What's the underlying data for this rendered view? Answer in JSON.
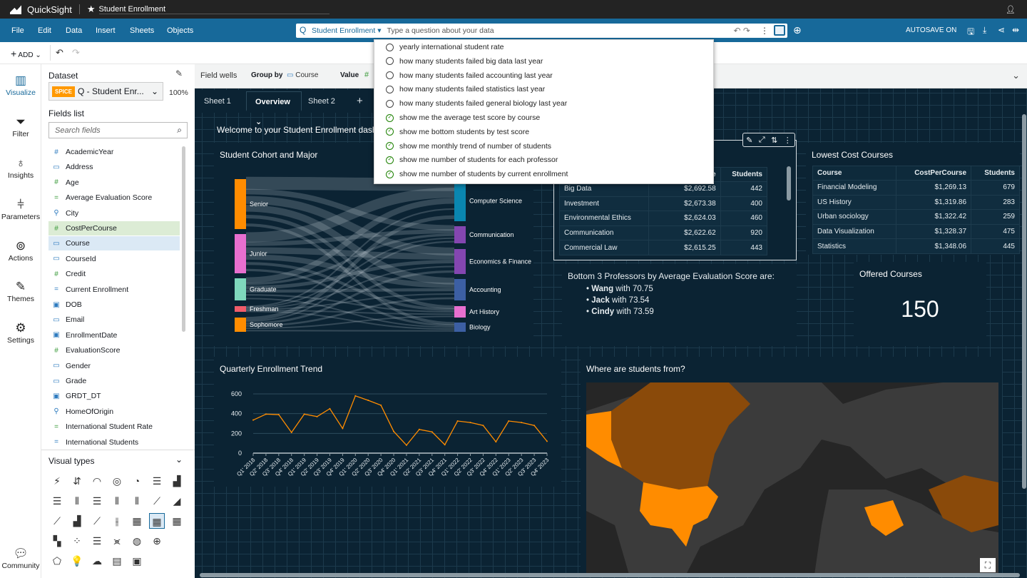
{
  "app": {
    "name": "QuickSight",
    "analysis_title": "Student Enrollment"
  },
  "menu": [
    "File",
    "Edit",
    "Data",
    "Insert",
    "Sheets",
    "Objects"
  ],
  "qbar": {
    "topic": "Student Enrollment",
    "placeholder": "Type a question about your data"
  },
  "autosave": "AUTOSAVE ON",
  "toolbar": {
    "add_label": "ADD"
  },
  "rail": [
    {
      "label": "Visualize",
      "icon": "bar-chart-icon"
    },
    {
      "label": "Filter",
      "icon": "funnel-icon"
    },
    {
      "label": "Insights",
      "icon": "lightbulb-icon"
    },
    {
      "label": "Parameters",
      "icon": "sliders-icon"
    },
    {
      "label": "Actions",
      "icon": "cursor-click-icon"
    },
    {
      "label": "Themes",
      "icon": "brush-icon"
    },
    {
      "label": "Settings",
      "icon": "gear-icon"
    }
  ],
  "community": "Community",
  "dataset": {
    "label": "Dataset",
    "badge": "SPICE",
    "name": "Q - Student Enr...",
    "percent": "100%",
    "fields_label": "Fields list",
    "search_placeholder": "Search fields"
  },
  "fields": [
    {
      "name": "AcademicYear",
      "type": "#",
      "color": "#2e7bbf"
    },
    {
      "name": "Address",
      "type": "dim",
      "color": "#2e7bbf"
    },
    {
      "name": "Age",
      "type": "#",
      "color": "#3a9a3a"
    },
    {
      "name": "Average Evaluation Score",
      "type": "=",
      "color": "#3a9a3a"
    },
    {
      "name": "City",
      "type": "geo",
      "color": "#2e7bbf"
    },
    {
      "name": "CostPerCourse",
      "type": "#",
      "color": "#3a9a3a",
      "selected": "measure"
    },
    {
      "name": "Course",
      "type": "dim",
      "color": "#2e7bbf",
      "selected": "dimension"
    },
    {
      "name": "CourseId",
      "type": "dim",
      "color": "#2e7bbf"
    },
    {
      "name": "Credit",
      "type": "#",
      "color": "#3a9a3a"
    },
    {
      "name": "Current Enrollment",
      "type": "=",
      "color": "#2e7bbf"
    },
    {
      "name": "DOB",
      "type": "date",
      "color": "#2e7bbf"
    },
    {
      "name": "Email",
      "type": "dim",
      "color": "#2e7bbf"
    },
    {
      "name": "EnrollmentDate",
      "type": "date",
      "color": "#2e7bbf"
    },
    {
      "name": "EvaluationScore",
      "type": "#",
      "color": "#3a9a3a"
    },
    {
      "name": "Gender",
      "type": "dim",
      "color": "#2e7bbf"
    },
    {
      "name": "Grade",
      "type": "dim",
      "color": "#2e7bbf"
    },
    {
      "name": "GRDT_DT",
      "type": "date",
      "color": "#2e7bbf"
    },
    {
      "name": "HomeOfOrigin",
      "type": "geo",
      "color": "#2e7bbf"
    },
    {
      "name": "International Student Rate",
      "type": "=",
      "color": "#3a9a3a"
    },
    {
      "name": "International Students",
      "type": "=",
      "color": "#2e7bbf"
    }
  ],
  "visual_types_label": "Visual types",
  "field_wells": {
    "label": "Field wells",
    "group_by_label": "Group by",
    "group_by_value": "Course",
    "value_label": "Value"
  },
  "sheets": [
    "Sheet 1",
    "Overview",
    "Sheet 2"
  ],
  "active_sheet": "Overview",
  "suggestions": [
    {
      "text": "yearly international student rate",
      "kind": "recent"
    },
    {
      "text": "how many students failed big data last year",
      "kind": "recent"
    },
    {
      "text": "how many students failed accounting last year",
      "kind": "recent"
    },
    {
      "text": "how many students failed statistics last year",
      "kind": "recent"
    },
    {
      "text": "how many students failed general biology last year",
      "kind": "recent"
    },
    {
      "text": "show me the average test score by course",
      "kind": "verified"
    },
    {
      "text": "show me bottom students by test score",
      "kind": "verified"
    },
    {
      "text": "show me monthly trend of number of students",
      "kind": "verified"
    },
    {
      "text": "show me number of students for each professor",
      "kind": "verified"
    },
    {
      "text": "show me number of students by current enrollment",
      "kind": "verified"
    }
  ],
  "welcome": "Welcome to your Student Enrollment dash",
  "sankey": {
    "title": "Student Cohort and Major",
    "sources": [
      {
        "name": "Senior",
        "color": "#ff8c00"
      },
      {
        "name": "Junior",
        "color": "#e86fcf"
      },
      {
        "name": "Graduate",
        "color": "#7fd8bd"
      },
      {
        "name": "Freshman",
        "color": "#f15c6a"
      },
      {
        "name": "Sophomore",
        "color": "#ff8c00"
      }
    ],
    "targets": [
      {
        "name": "Computer Science",
        "color": "#0a86b0"
      },
      {
        "name": "Communication",
        "color": "#8446b0"
      },
      {
        "name": "Economics & Finance",
        "color": "#8446b0"
      },
      {
        "name": "Accounting",
        "color": "#3c5fa3"
      },
      {
        "name": "Art History",
        "color": "#e86fcf"
      },
      {
        "name": "Biology",
        "color": "#3c5fa3"
      }
    ]
  },
  "top_table": {
    "headers": [
      "Course",
      "CostPerCourse",
      "Students"
    ],
    "rows": [
      [
        "Big Data",
        "$2,692.58",
        "442"
      ],
      [
        "Investment",
        "$2,673.38",
        "400"
      ],
      [
        "Environmental Ethics",
        "$2,624.03",
        "460"
      ],
      [
        "Communication",
        "$2,622.62",
        "920"
      ],
      [
        "Commercial Law",
        "$2,615.25",
        "443"
      ]
    ]
  },
  "lowest_table": {
    "title": "Lowest Cost Courses",
    "headers": [
      "Course",
      "CostPerCourse",
      "Students"
    ],
    "rows": [
      [
        "Financial Modeling",
        "$1,269.13",
        "679"
      ],
      [
        "US History",
        "$1,319.86",
        "283"
      ],
      [
        "Urban sociology",
        "$1,322.42",
        "259"
      ],
      [
        "Data Visualization",
        "$1,328.37",
        "475"
      ],
      [
        "Statistics",
        "$1,348.06",
        "445"
      ]
    ]
  },
  "professors": {
    "heading": "Bottom 3 Professors by Average Evaluation Score are:",
    "items": [
      {
        "name": "Wang",
        "text": " with 70.75"
      },
      {
        "name": "Jack",
        "text": " with 73.54"
      },
      {
        "name": "Cindy",
        "text": " with 73.59"
      }
    ]
  },
  "kpi": {
    "title": "Offered Courses",
    "value": "150"
  },
  "map": {
    "title": "Where are students from?"
  },
  "chart_data": {
    "type": "line",
    "title": "Quarterly Enrollment Trend",
    "xlabel": "",
    "ylabel": "",
    "ylim": [
      0,
      600
    ],
    "yticks": [
      0,
      200,
      400,
      600
    ],
    "grid": true,
    "color": "#ff8c00",
    "categories": [
      "Q1' 2018",
      "Q2' 2018",
      "Q3' 2018",
      "Q4' 2018",
      "Q1' 2019",
      "Q2' 2019",
      "Q3' 2019",
      "Q4' 2019",
      "Q1' 2020",
      "Q2' 2020",
      "Q3' 2020",
      "Q4' 2020",
      "Q1' 2021",
      "Q2' 2021",
      "Q3' 2021",
      "Q4' 2021",
      "Q1' 2022",
      "Q2' 2022",
      "Q3' 2022",
      "Q4' 2022",
      "Q1' 2023",
      "Q2' 2023",
      "Q3' 2023",
      "Q4' 2023"
    ],
    "values": [
      335,
      395,
      390,
      210,
      395,
      370,
      450,
      250,
      580,
      535,
      485,
      220,
      80,
      240,
      215,
      85,
      325,
      310,
      280,
      115,
      325,
      310,
      280,
      120
    ]
  }
}
